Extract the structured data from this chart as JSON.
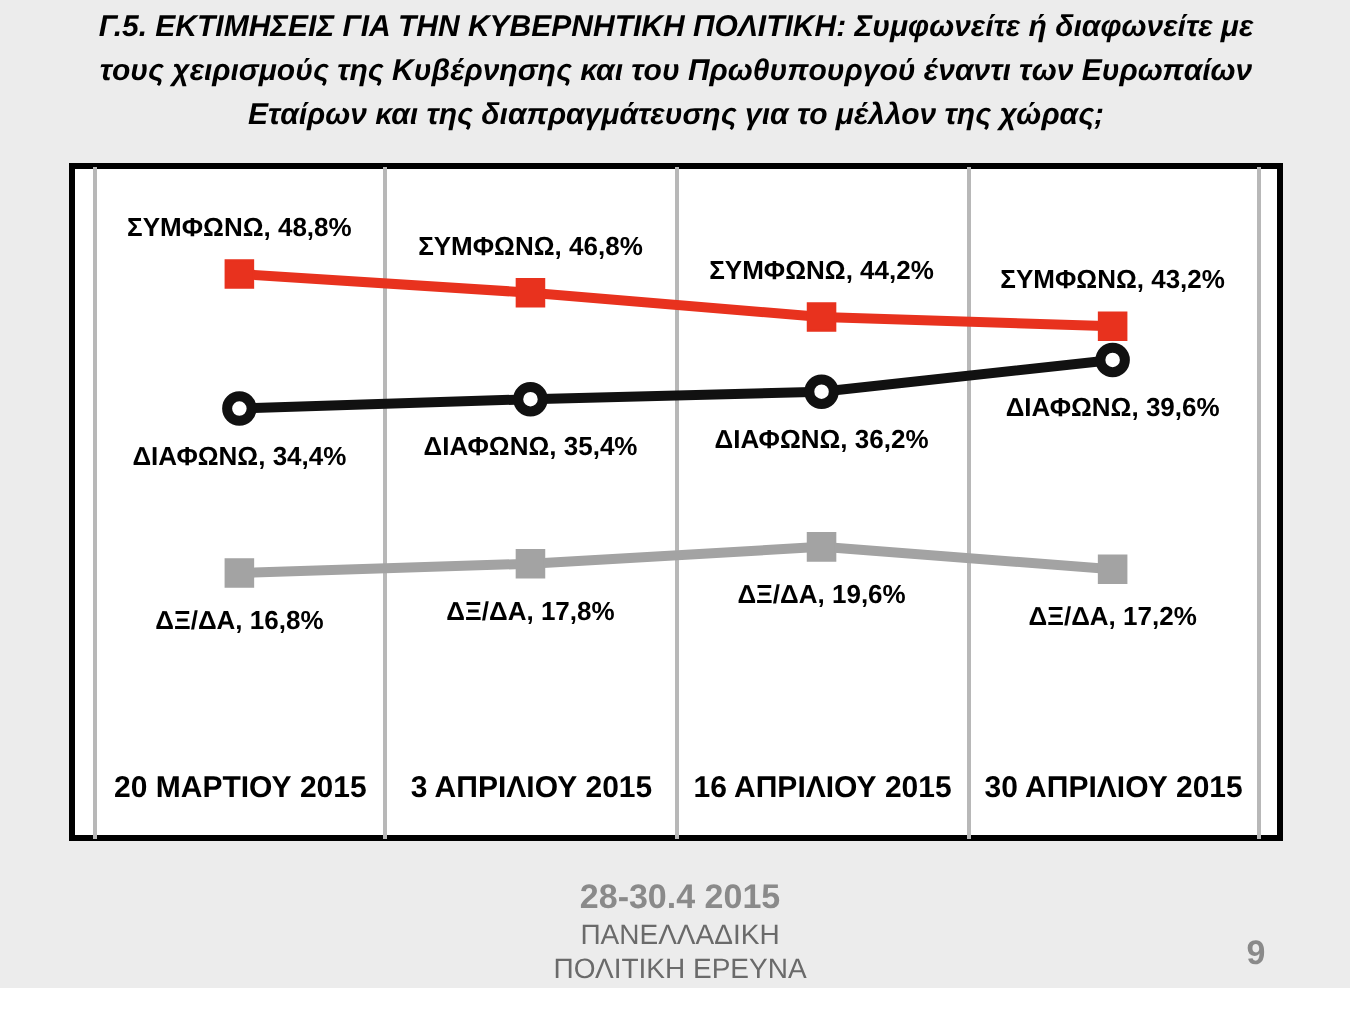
{
  "chart_data": {
    "type": "line",
    "title": "Γ.5. ΕΚΤΙΜΗΣΕΙΣ ΓΙΑ ΤΗΝ ΚΥΒΕΡΝΗΤΙΚΗ ΠΟΛΙΤΙΚΗ: Συμφωνείτε ή διαφωνείτε με τους χειρισμούς της Κυβέρνησης και του Πρωθυπουργού έναντι των Ευρωπαίων Εταίρων και της διαπραγμάτευσης για το μέλλον της χώρας;",
    "categories": [
      "20 ΜΑΡΤΙΟΥ 2015",
      "3 ΑΠΡΙΛΙΟΥ 2015",
      "16 ΑΠΡΙΛΙΟΥ 2015",
      "30 ΑΠΡΙΛΙΟΥ 2015"
    ],
    "series": [
      {
        "color": "#e8321e",
        "marker": "square",
        "values": [
          48.8,
          46.8,
          44.2,
          43.2
        ],
        "value_labels": [
          "ΣΥΜΦΩΝΩ, 48,8%",
          "ΣΥΜΦΩΝΩ, 46,8%",
          "ΣΥΜΦΩΝΩ, 44,2%",
          "ΣΥΜΦΩΝΩ, 43,2%"
        ]
      },
      {
        "color": "#111111",
        "marker": "circle",
        "values": [
          34.4,
          35.4,
          36.2,
          39.6
        ],
        "value_labels": [
          "ΔΙΑΦΩΝΩ, 34,4%",
          "ΔΙΑΦΩΝΩ, 35,4%",
          "ΔΙΑΦΩΝΩ, 36,2%",
          "ΔΙΑΦΩΝΩ, 39,6%"
        ]
      },
      {
        "color": "#a3a3a3",
        "marker": "square",
        "values": [
          16.8,
          17.8,
          19.6,
          17.2
        ],
        "value_labels": [
          "ΔΞ/ΔΑ, 16,8%",
          "ΔΞ/ΔΑ, 17,8%",
          "ΔΞ/ΔΑ, 19,6%",
          "ΔΞ/ΔΑ, 17,2%"
        ]
      }
    ],
    "grid": "x",
    "tick_labels": "x",
    "annotations": [
      "28-30.4 2015",
      "ΠΑΝΕΛΛΑΔΙΚΗ",
      "ΠΟΛΙΤΙΚΗ ΕΡΕΥΝΑ",
      "9"
    ]
  }
}
